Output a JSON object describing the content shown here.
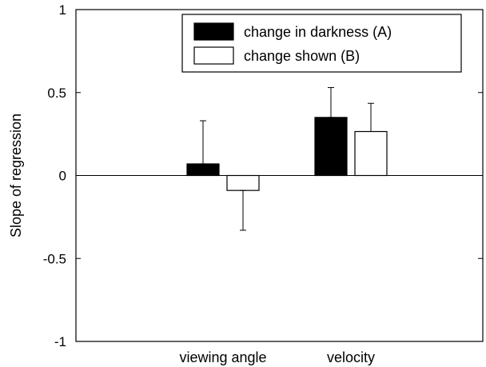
{
  "chart_data": {
    "type": "bar",
    "title": "",
    "xlabel": "",
    "ylabel": "Slope of regression",
    "categories": [
      "viewing angle",
      "velocity"
    ],
    "series": [
      {
        "name": "change in darkness (A)",
        "fill": "#000000",
        "values": [
          0.07,
          0.35
        ],
        "errors": [
          0.26,
          0.18
        ]
      },
      {
        "name": "change shown (B)",
        "fill": "#ffffff",
        "values": [
          -0.09,
          0.265
        ],
        "errors": [
          0.24,
          0.17
        ]
      }
    ],
    "ylim": [
      -1,
      1
    ],
    "yticks": [
      {
        "value": 1,
        "label": "1"
      },
      {
        "value": 0.5,
        "label": "0.5"
      },
      {
        "value": 0,
        "label": "0"
      },
      {
        "value": -0.5,
        "label": "-0.5"
      },
      {
        "value": -1,
        "label": "-1"
      }
    ],
    "grid": false,
    "legend_position": "top-right",
    "zero_line": true
  }
}
